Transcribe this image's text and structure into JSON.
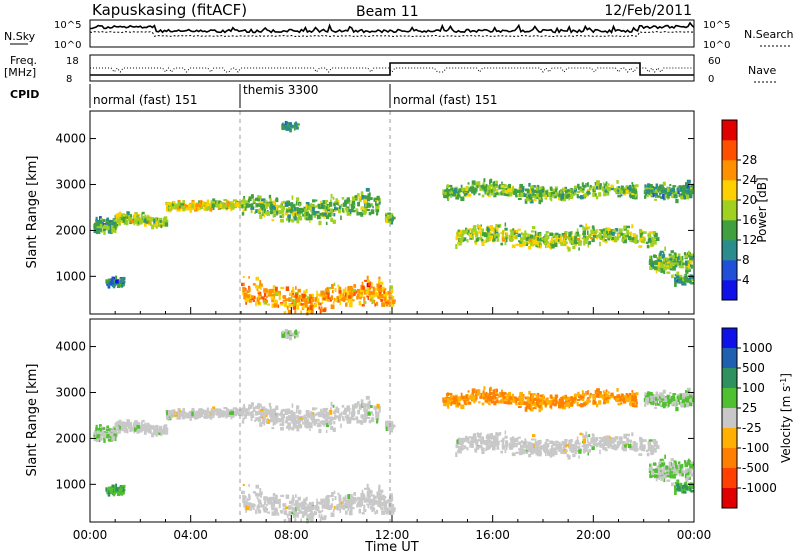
{
  "header": {
    "station": "Kapuskasing (fitACF)",
    "beam": "Beam 11",
    "date": "12/Feb/2011"
  },
  "top_panels": {
    "nsky_label": "N.Sky",
    "nsky_ticks": [
      "10^5",
      "10^0"
    ],
    "nsearch_label": "N.Search",
    "freq_label_1": "Freq.",
    "freq_label_2": "[MHz]",
    "freq_ticks": [
      "18",
      "8"
    ],
    "nave_label": "Nave",
    "nave_ticks": [
      "60",
      "0"
    ],
    "cpid_label": "CPID",
    "cpid_segments": [
      {
        "label": "normal (fast) 151",
        "start_h": 0,
        "end_h": 6
      },
      {
        "label": "themis 3300",
        "start_h": 6,
        "end_h": 12
      },
      {
        "label": "normal (fast) 151",
        "start_h": 12,
        "end_h": 24
      }
    ]
  },
  "axes": {
    "ylabel": "Slant Range [km]",
    "xlabel": "Time UT",
    "xticks": [
      "00:00",
      "04:00",
      "08:00",
      "12:00",
      "16:00",
      "20:00",
      "00:00"
    ],
    "yticks": [
      "1000",
      "2000",
      "3000",
      "4000"
    ]
  },
  "power_colorbar": {
    "label": "Power [dB]",
    "ticks": [
      "4",
      "8",
      "12",
      "16",
      "20",
      "24",
      "28"
    ],
    "colors": [
      "#1010e8",
      "#2050d8",
      "#2a8c8c",
      "#40a040",
      "#a0d020",
      "#ffd000",
      "#ff9000",
      "#ff5000",
      "#e00000"
    ]
  },
  "velocity_colorbar": {
    "label": "Velocity [m s^-1]",
    "ticks": [
      "1000",
      "500",
      "100",
      "25",
      "-25",
      "-100",
      "-500",
      "-1000"
    ],
    "colors": [
      "#1010e8",
      "#2060b0",
      "#309060",
      "#50c030",
      "#c8c8c8",
      "#ffb000",
      "#ff8000",
      "#ff4000",
      "#e00000"
    ]
  },
  "chart_data": {
    "type": "heatmap",
    "title": "Kapuskasing (fitACF) Beam 11 12/Feb/2011",
    "x_range_h": [
      0,
      24
    ],
    "ylim_km": [
      180,
      4600
    ],
    "panels": [
      "Power [dB]",
      "Velocity [m s^-1]"
    ],
    "echo_regions": [
      {
        "t_start_h": 0.1,
        "t_end_h": 1.0,
        "range_center_km": 2050,
        "range_width_km": 450,
        "power_db": 10,
        "velocity_ms": 25
      },
      {
        "t_start_h": 0.6,
        "t_end_h": 1.3,
        "range_center_km": 850,
        "range_width_km": 200,
        "power_db": 8,
        "velocity_ms": 100
      },
      {
        "t_start_h": 1.0,
        "t_end_h": 3.0,
        "range_center_km": 2200,
        "range_width_km": 300,
        "power_db": 14,
        "velocity_ms": 0
      },
      {
        "t_start_h": 3.0,
        "t_end_h": 6.0,
        "range_center_km": 2550,
        "range_width_km": 250,
        "power_db": 16,
        "velocity_ms": 0
      },
      {
        "t_start_h": 6.0,
        "t_end_h": 11.5,
        "range_center_km": 2500,
        "range_width_km": 600,
        "power_db": 12,
        "velocity_ms": 0
      },
      {
        "t_start_h": 7.6,
        "t_end_h": 8.2,
        "range_center_km": 4300,
        "range_width_km": 200,
        "power_db": 8,
        "velocity_ms": 25
      },
      {
        "t_start_h": 6.0,
        "t_end_h": 12.0,
        "range_center_km": 550,
        "range_width_km": 650,
        "power_db": 20,
        "velocity_ms": 0
      },
      {
        "t_start_h": 11.7,
        "t_end_h": 12.0,
        "range_center_km": 2250,
        "range_width_km": 250,
        "power_db": 12,
        "velocity_ms": 0
      },
      {
        "t_start_h": 14.0,
        "t_end_h": 21.7,
        "range_center_km": 2850,
        "range_width_km": 400,
        "power_db": 12,
        "velocity_ms": -100
      },
      {
        "t_start_h": 14.5,
        "t_end_h": 22.5,
        "range_center_km": 1850,
        "range_width_km": 500,
        "power_db": 14,
        "velocity_ms": 0
      },
      {
        "t_start_h": 22.0,
        "t_end_h": 23.9,
        "range_center_km": 2900,
        "range_width_km": 400,
        "power_db": 10,
        "velocity_ms": 25
      },
      {
        "t_start_h": 22.2,
        "t_end_h": 23.9,
        "range_center_km": 1400,
        "range_width_km": 600,
        "power_db": 12,
        "velocity_ms": 25
      },
      {
        "t_start_h": 23.2,
        "t_end_h": 23.9,
        "range_center_km": 950,
        "range_width_km": 200,
        "power_db": 8,
        "velocity_ms": 100
      }
    ]
  }
}
